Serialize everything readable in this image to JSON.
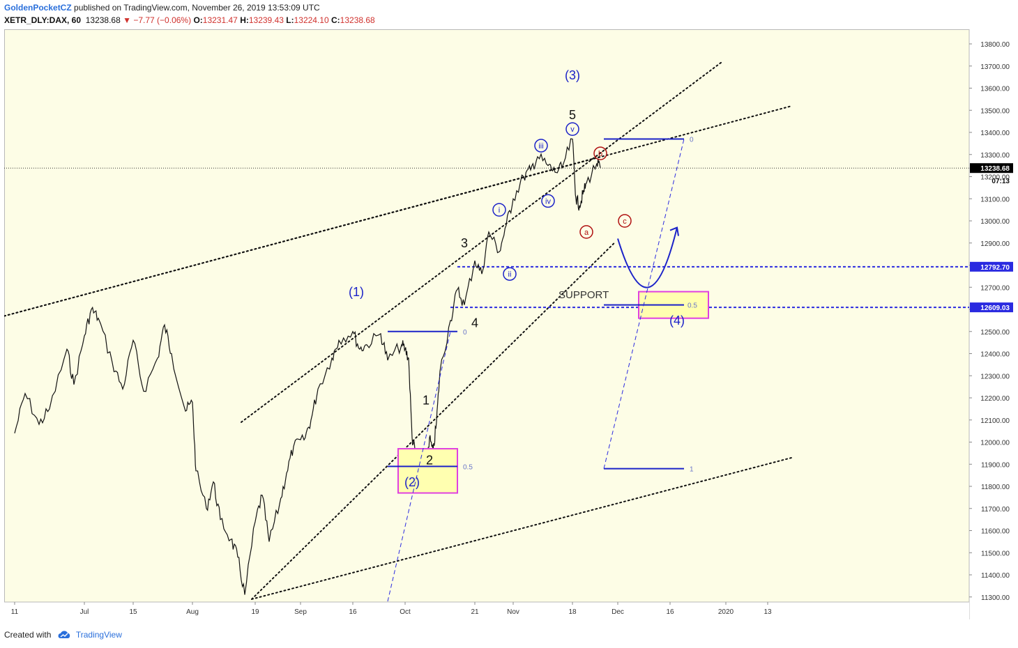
{
  "header": {
    "author": "GoldenPocketCZ",
    "published_text": "published on TradingView.com, November 26, 2019 13:53:09 UTC",
    "symbol": "XETR_DLY:DAX, 60",
    "last": "13238.68",
    "arrow": "▼",
    "change": "−7.77 (−0.06%)",
    "o_label": "O:",
    "o": "13231.47",
    "h_label": "H:",
    "h": "13239.43",
    "l_label": "L:",
    "l": "13224.10",
    "c_label": "C:",
    "c": "13238.68"
  },
  "footer": {
    "created_with": "Created with",
    "brand": "TradingView"
  },
  "colors": {
    "background": "#fdfde6",
    "price": "#111111",
    "wave_blue": "#1b22c8",
    "wave_red": "#b01010",
    "magenta": "#e040e0",
    "highlight": "#ffffb0",
    "dashed": "#2a2ae0"
  },
  "chart_data": {
    "type": "line",
    "title": "",
    "ylim": [
      11280,
      13880
    ],
    "x": [
      "2019-06-11",
      "2019-06-14",
      "2019-06-18",
      "2019-06-21",
      "2019-06-26",
      "2019-06-28",
      "2019-07-01",
      "2019-07-03",
      "2019-07-05",
      "2019-07-09",
      "2019-07-12",
      "2019-07-15",
      "2019-07-18",
      "2019-07-22",
      "2019-07-24",
      "2019-07-26",
      "2019-07-30",
      "2019-08-01",
      "2019-08-02",
      "2019-08-05",
      "2019-08-07",
      "2019-08-09",
      "2019-08-12",
      "2019-08-14",
      "2019-08-16",
      "2019-08-19",
      "2019-08-21",
      "2019-08-23",
      "2019-08-26",
      "2019-08-28",
      "2019-08-30",
      "2019-09-02",
      "2019-09-04",
      "2019-09-06",
      "2019-09-10",
      "2019-09-12",
      "2019-09-16",
      "2019-09-18",
      "2019-09-20",
      "2019-09-24",
      "2019-09-26",
      "2019-09-30",
      "2019-10-01",
      "2019-10-02",
      "2019-10-03",
      "2019-10-04",
      "2019-10-07",
      "2019-10-08",
      "2019-10-09",
      "2019-10-10",
      "2019-10-11",
      "2019-10-14",
      "2019-10-16",
      "2019-10-18",
      "2019-10-21",
      "2019-10-23",
      "2019-10-25",
      "2019-10-28",
      "2019-10-30",
      "2019-11-01",
      "2019-11-04",
      "2019-11-06",
      "2019-11-08",
      "2019-11-11",
      "2019-11-13",
      "2019-11-15",
      "2019-11-18",
      "2019-11-19",
      "2019-11-20",
      "2019-11-21",
      "2019-11-22",
      "2019-11-25",
      "2019-11-26"
    ],
    "series": [
      {
        "values": [
          12040,
          12220,
          12080,
          12150,
          12420,
          12260,
          12480,
          12600,
          12560,
          12360,
          12240,
          12460,
          12230,
          12380,
          12530,
          12400,
          12140,
          12180,
          11870,
          11700,
          11820,
          11650,
          11560,
          11480,
          11310,
          11640,
          11760,
          11550,
          11720,
          11860,
          11980,
          12010,
          12100,
          12240,
          12380,
          12460,
          12500,
          12420,
          12440,
          12490,
          12370,
          12440,
          12420,
          12380,
          12020,
          11950,
          11900,
          12020,
          11950,
          12090,
          12320,
          12550,
          12690,
          12620,
          12820,
          12760,
          12950,
          12860,
          12980,
          13100,
          13200,
          13230,
          13290,
          13250,
          13220,
          13240,
          13370,
          13100,
          13070,
          13120,
          13170,
          13260,
          13240
        ]
      }
    ],
    "price_scale_labels": [
      "13800.00",
      "13700.00",
      "13600.00",
      "13500.00",
      "13400.00",
      "13300.00",
      "13200.00",
      "13100.00",
      "13000.00",
      "12900.00",
      "12800.00",
      "12700.00",
      "12600.00",
      "12500.00",
      "12400.00",
      "12300.00",
      "12200.00",
      "12100.00",
      "12000.00",
      "11900.00",
      "11800.00",
      "11700.00",
      "11600.00",
      "11500.00",
      "11400.00",
      "11300.00"
    ],
    "time_scale_labels": [
      "11",
      "Jul",
      "15",
      "Aug",
      "19",
      "Sep",
      "16",
      "Oct",
      "21",
      "Nov",
      "18",
      "Dec",
      "16",
      "2020",
      "13"
    ],
    "last_price": {
      "value": 13238.68,
      "label": "13238.68",
      "countdown": "07:13"
    },
    "levels": [
      {
        "value": 12792.7,
        "label": "12792.70"
      },
      {
        "value": 12609.03,
        "label": "12609.03"
      }
    ],
    "wave_labels": [
      "(1)",
      "(2)",
      "(3)",
      "(4)",
      "1",
      "2",
      "3",
      "4",
      "5",
      "i",
      "ii",
      "iii",
      "iv",
      "v",
      "a",
      "b",
      "c"
    ],
    "fib_labels": {
      "zero": "0",
      "half": "0.5",
      "one": "1"
    },
    "support_text": "SUPPORT"
  }
}
